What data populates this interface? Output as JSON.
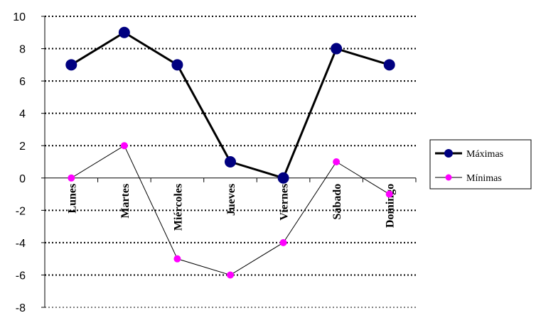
{
  "chart_data": {
    "type": "line",
    "categories": [
      "Lunes",
      "Martes",
      "Miércoles",
      "Jueves",
      "Viernes",
      "Sábado",
      "Domingo"
    ],
    "series": [
      {
        "name": "Máximas",
        "values": [
          7,
          9,
          7,
          1,
          0,
          8,
          7
        ],
        "color": "#000000",
        "marker_color": "#000080",
        "line_style": "thick",
        "marker": "large-circle"
      },
      {
        "name": "Mínimas",
        "values": [
          0,
          2,
          -5,
          -6,
          -4,
          1,
          -1
        ],
        "color": "#000000",
        "marker_color": "#ff00ff",
        "line_style": "thin",
        "marker": "small-circle"
      }
    ],
    "ylim": [
      -8,
      10
    ],
    "yticks": [
      -8,
      -6,
      -4,
      -2,
      0,
      2,
      4,
      6,
      8,
      10
    ],
    "grid": "horizontal-dotted",
    "legend_position": "right"
  }
}
